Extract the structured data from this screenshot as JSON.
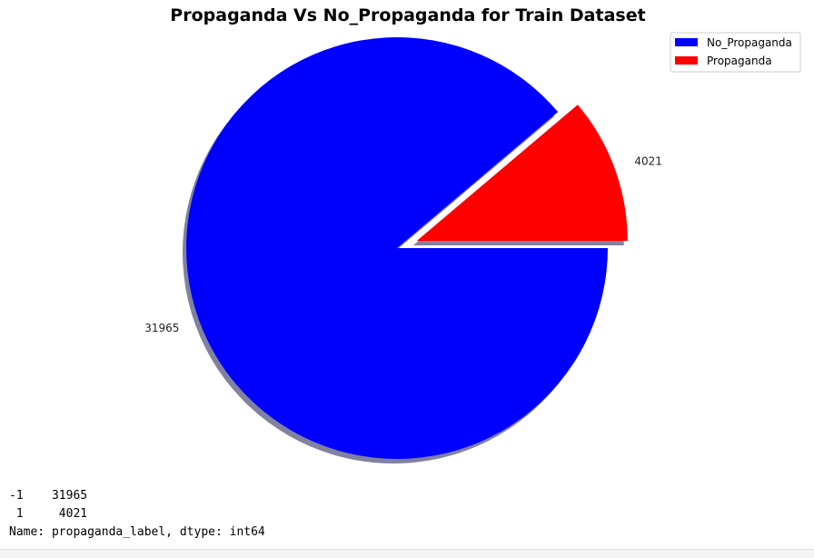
{
  "chart_data": {
    "type": "pie",
    "title": "Propaganda Vs No_Propaganda for Train Dataset",
    "categories": [
      "Propaganda",
      "No_Propaganda"
    ],
    "values": [
      4021,
      31965
    ],
    "labels": [
      "4021",
      "31965"
    ],
    "colors": [
      "#ff0000",
      "#0000ff"
    ],
    "explode": [
      0.1,
      0
    ],
    "shadow": true,
    "start_angle_deg": 0,
    "legend": {
      "placement": "top-right",
      "entries": [
        {
          "label": "No_Propaganda",
          "color": "#0000ff"
        },
        {
          "label": "Propaganda",
          "color": "#ff0000"
        }
      ]
    }
  },
  "output": {
    "lines": [
      "-1    31965",
      " 1     4021",
      "Name: propaganda_label, dtype: int64"
    ]
  }
}
